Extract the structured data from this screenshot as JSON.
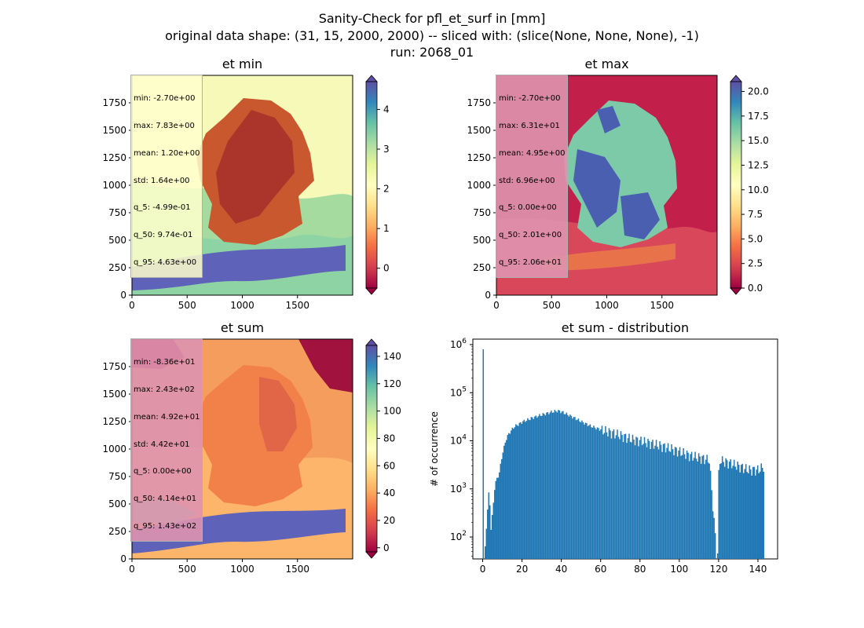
{
  "figure": {
    "title_lines": [
      "Sanity-Check for pfl_et_surf in [mm]",
      "original data shape: (31, 15, 2000, 2000) -- sliced with: (slice(None, None, None), -1)",
      "run: 2068_01"
    ]
  },
  "maps": [
    {
      "id": "et-min",
      "title": "et min",
      "stats": [
        "min: -2.70e+00",
        "max: 7.83e+00",
        "mean: 1.20e+00",
        "std: 1.64e+00",
        "q_5: -4.99e-01",
        "q_50: 9.74e-01",
        "q_95: 4.63e+00"
      ],
      "x_ticks": [
        "0",
        "500",
        "1000",
        "1500"
      ],
      "y_ticks": [
        "0",
        "250",
        "500",
        "750",
        "1000",
        "1250",
        "1500",
        "1750"
      ],
      "colorbar": {
        "min": -0.5,
        "max": 4.7,
        "ticks": [
          "0",
          "1",
          "2",
          "3",
          "4"
        ],
        "extend": "both"
      },
      "statbox_color": "#ffffcc"
    },
    {
      "id": "et-max",
      "title": "et max",
      "stats": [
        "min: -2.70e+00",
        "max: 6.31e+01",
        "mean: 4.95e+00",
        "std: 6.96e+00",
        "q_5: 0.00e+00",
        "q_50: 2.01e+00",
        "q_95: 2.06e+01"
      ],
      "x_ticks": [
        "0",
        "500",
        "1000",
        "1500"
      ],
      "y_ticks": [
        "0",
        "250",
        "500",
        "750",
        "1000",
        "1250",
        "1500",
        "1750"
      ],
      "colorbar": {
        "min": 0,
        "max": 21,
        "ticks": [
          "0.0",
          "2.5",
          "5.0",
          "7.5",
          "10.0",
          "12.5",
          "15.0",
          "17.5",
          "20.0"
        ],
        "extend": "both"
      },
      "statbox_color": "#d98aa6"
    },
    {
      "id": "et-sum",
      "title": "et sum",
      "stats": [
        "min: -8.36e+01",
        "max: 2.43e+02",
        "mean: 4.92e+01",
        "std: 4.42e+01",
        "q_5: 0.00e+00",
        "q_50: 4.14e+01",
        "q_95: 1.43e+02"
      ],
      "x_ticks": [
        "0",
        "500",
        "1000",
        "1500"
      ],
      "y_ticks": [
        "0",
        "250",
        "500",
        "750",
        "1000",
        "1250",
        "1500",
        "1750"
      ],
      "colorbar": {
        "min": -3,
        "max": 148,
        "ticks": [
          "0",
          "20",
          "40",
          "60",
          "80",
          "100",
          "120",
          "140"
        ],
        "extend": "both"
      },
      "statbox_color": "#d98aa6"
    }
  ],
  "chart_data": {
    "type": "bar",
    "title": "et sum - distribution",
    "xlabel": "",
    "ylabel": "# of occurrence",
    "y_scale": "log",
    "xlim": [
      -5,
      150
    ],
    "ylim": [
      35,
      1300000
    ],
    "x_ticks": [
      "0",
      "20",
      "40",
      "60",
      "80",
      "100",
      "120",
      "140"
    ],
    "y_ticks": [
      "10^2",
      "10^3",
      "10^4",
      "10^5",
      "10^6"
    ],
    "bar_color": "#1f77b4",
    "x": [
      0,
      1,
      2,
      3,
      4,
      5,
      6,
      8,
      10,
      12,
      14,
      16,
      18,
      20,
      25,
      30,
      35,
      38,
      40,
      45,
      50,
      55,
      60,
      65,
      70,
      75,
      80,
      85,
      90,
      95,
      100,
      105,
      110,
      115,
      118.7,
      120,
      125,
      130,
      135,
      140,
      143
    ],
    "values": [
      800000,
      60,
      300,
      1000,
      150,
      400,
      1300,
      2000,
      6000,
      12000,
      16000,
      20000,
      22000,
      25000,
      30000,
      35000,
      40000,
      42000,
      40000,
      32000,
      25000,
      20000,
      17000,
      15000,
      13000,
      11000,
      10000,
      9000,
      8000,
      7000,
      6000,
      5000,
      4500,
      4000,
      45,
      4000,
      3500,
      3000,
      2500,
      2500,
      3000
    ]
  }
}
